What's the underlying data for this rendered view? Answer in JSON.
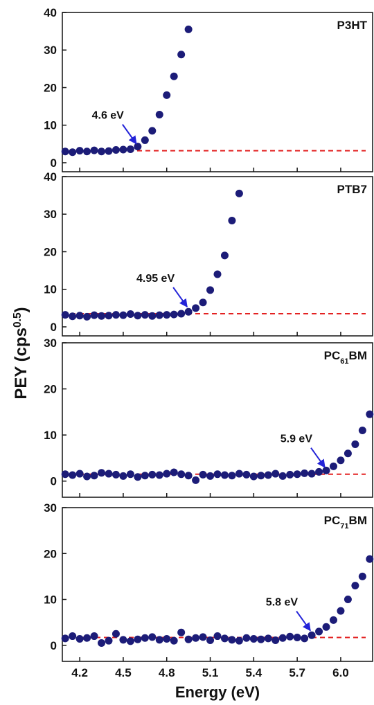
{
  "ylabel_parts": [
    "PEY (cps",
    "0.5",
    ")"
  ],
  "chart_data": [
    {
      "type": "scatter",
      "label_parts": [
        "P3HT"
      ],
      "color": "#1c1c78",
      "x": [
        4.1,
        4.15,
        4.2,
        4.25,
        4.3,
        4.35,
        4.4,
        4.45,
        4.5,
        4.55,
        4.6,
        4.65,
        4.7,
        4.75,
        4.8,
        4.85,
        4.9,
        4.95
      ],
      "values": [
        3.0,
        2.8,
        3.2,
        3.0,
        3.3,
        3.0,
        3.1,
        3.4,
        3.5,
        3.6,
        4.3,
        6.0,
        8.5,
        12.8,
        18,
        23,
        28.8,
        35.5
      ],
      "baseline": 3.2,
      "annotation": {
        "value": 4.6,
        "label": "4.6 eV"
      },
      "xlim": [
        4.08,
        6.22
      ],
      "xticks": [
        4.2,
        4.5,
        4.8,
        5.1,
        5.4,
        5.7,
        {
          "value": 6,
          "label": "6.0"
        }
      ],
      "ylim": [
        -2.4,
        40
      ],
      "yticks": [
        0,
        10,
        20,
        30,
        40
      ]
    },
    {
      "type": "scatter",
      "label_parts": [
        "PTB7"
      ],
      "color": "#1c1c78",
      "x": [
        4.1,
        4.15,
        4.2,
        4.25,
        4.3,
        4.35,
        4.4,
        4.45,
        4.5,
        4.55,
        4.6,
        4.65,
        4.7,
        4.75,
        4.8,
        4.85,
        4.9,
        4.95,
        5.0,
        5.05,
        5.1,
        5.15,
        5.2,
        5.25,
        5.3
      ],
      "values": [
        3.2,
        2.8,
        3.0,
        2.7,
        3.1,
        2.9,
        3.0,
        3.2,
        3.1,
        3.4,
        3.0,
        3.2,
        2.9,
        3.1,
        3.2,
        3.3,
        3.5,
        4.0,
        5.0,
        6.5,
        9.8,
        14,
        19,
        28.3,
        35.5
      ],
      "baseline": 3.5,
      "annotation": {
        "value": 4.95,
        "label": "4.95 eV"
      },
      "xlim": [
        4.08,
        6.22
      ],
      "xticks": [
        4.2,
        4.5,
        4.8,
        5.1,
        5.4,
        5.7,
        {
          "value": 6,
          "label": "6.0"
        }
      ],
      "ylim": [
        -2.4,
        40
      ],
      "yticks": [
        0,
        10,
        20,
        30,
        40
      ]
    },
    {
      "type": "scatter",
      "label_parts": [
        "PC",
        "61",
        "BM"
      ],
      "color": "#1c1c78",
      "x": [
        4.1,
        4.15,
        4.2,
        4.25,
        4.3,
        4.35,
        4.4,
        4.45,
        4.5,
        4.55,
        4.6,
        4.65,
        4.7,
        4.75,
        4.8,
        4.85,
        4.9,
        4.95,
        5.0,
        5.05,
        5.1,
        5.15,
        5.2,
        5.25,
        5.3,
        5.35,
        5.4,
        5.45,
        5.5,
        5.55,
        5.6,
        5.65,
        5.7,
        5.75,
        5.8,
        5.85,
        5.9,
        5.95,
        6.0,
        6.05,
        6.1,
        6.15,
        6.2
      ],
      "values": [
        1.5,
        1.3,
        1.6,
        1.0,
        1.2,
        1.8,
        1.6,
        1.4,
        1.1,
        1.5,
        0.9,
        1.2,
        1.4,
        1.3,
        1.6,
        1.9,
        1.5,
        1.2,
        0.2,
        1.4,
        1.1,
        1.5,
        1.3,
        1.2,
        1.6,
        1.4,
        1.0,
        1.2,
        1.3,
        1.6,
        1.1,
        1.4,
        1.5,
        1.7,
        1.6,
        2.0,
        2.3,
        3.2,
        4.5,
        6.0,
        8.0,
        11,
        14.5
      ],
      "baseline": 1.5,
      "annotation": {
        "value": 5.9,
        "label": "5.9 eV"
      },
      "xlim": [
        4.08,
        6.22
      ],
      "xticks": [
        4.2,
        4.5,
        4.8,
        5.1,
        5.4,
        5.7,
        {
          "value": 6,
          "label": "6.0"
        }
      ],
      "ylim": [
        -3.5,
        30
      ],
      "yticks": [
        0,
        10,
        20,
        30
      ]
    },
    {
      "type": "scatter",
      "label_parts": [
        "PC",
        "71",
        "BM"
      ],
      "color": "#1c1c78",
      "xlabel": "Energy (eV)",
      "x": [
        4.1,
        4.15,
        4.2,
        4.25,
        4.3,
        4.35,
        4.4,
        4.45,
        4.5,
        4.55,
        4.6,
        4.65,
        4.7,
        4.75,
        4.8,
        4.85,
        4.9,
        4.95,
        5.0,
        5.05,
        5.1,
        5.15,
        5.2,
        5.25,
        5.3,
        5.35,
        5.4,
        5.45,
        5.5,
        5.55,
        5.6,
        5.65,
        5.7,
        5.75,
        5.8,
        5.85,
        5.9,
        5.95,
        6.0,
        6.05,
        6.1,
        6.15,
        6.2
      ],
      "values": [
        1.5,
        2.0,
        1.4,
        1.6,
        2.0,
        0.5,
        1.0,
        2.5,
        1.2,
        0.9,
        1.3,
        1.6,
        1.8,
        1.2,
        1.4,
        1.0,
        2.8,
        1.3,
        1.6,
        1.8,
        1.1,
        2.0,
        1.5,
        1.2,
        1.0,
        1.6,
        1.4,
        1.3,
        1.5,
        1.1,
        1.6,
        1.9,
        1.7,
        1.5,
        2.2,
        3.0,
        4.0,
        5.5,
        7.5,
        10,
        13,
        15,
        18.8
      ],
      "baseline": 1.7,
      "annotation": {
        "value": 5.8,
        "label": "5.8 eV"
      },
      "xlim": [
        4.08,
        6.22
      ],
      "xticks": [
        4.2,
        4.5,
        4.8,
        5.1,
        5.4,
        5.7,
        {
          "value": 6,
          "label": "6.0"
        }
      ],
      "ylim": [
        -3.5,
        30
      ],
      "yticks": [
        0,
        10,
        20,
        30
      ]
    }
  ]
}
